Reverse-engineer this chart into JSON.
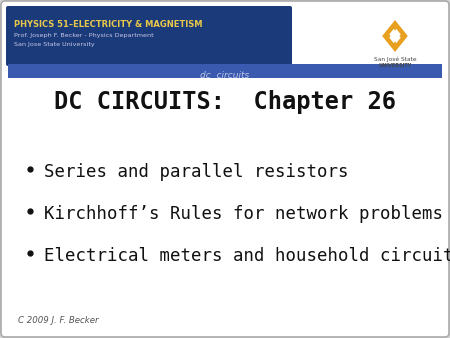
{
  "title": "DC CIRCUITS:  Chapter 26",
  "bullet_points": [
    "Series and parallel resistors",
    "Kirchhoff’s Rules for network problems",
    "Electrical meters and household circuits"
  ],
  "header_line1": "PHYSICS 51–ELECTRICITY & MAGNETISM",
  "header_line2": "Prof. Joseph F. Becker - Physics Department",
  "header_line3": "San Jose State University",
  "subtitle_bar": "dc  circuits",
  "footer": "C 2009 J. F. Becker",
  "bg_color": "#d8d8d8",
  "slide_bg": "#ffffff",
  "header_bg": "#1a3a7a",
  "header_text_color_title": "#e8c84a",
  "header_text_color_body": "#c8c8e8",
  "subtitle_bar_bg": "#3a5ab0",
  "subtitle_bar_text": "#c0c8e8",
  "title_color": "#111111",
  "bullet_color": "#111111",
  "footer_color": "#555555",
  "logo_diamond_color": "#e8a020",
  "logo_text_color": "#444444"
}
